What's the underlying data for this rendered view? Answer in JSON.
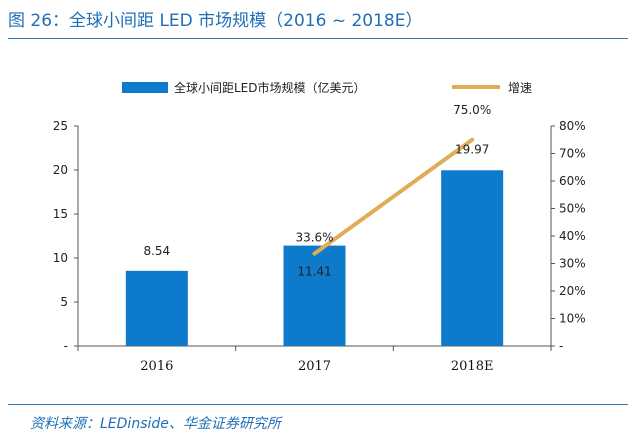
{
  "figure": {
    "title": "图 26：全球小间距 LED 市场规模（2016 ~ 2018E）",
    "source": "资料来源：LEDinside、华金证券研究所"
  },
  "colors": {
    "bar": "#0e7acb",
    "line": "#e0ac57",
    "axis": "#555555",
    "accent": "#1f6fb8"
  },
  "chart_data": {
    "type": "bar",
    "categories": [
      "2016",
      "2017",
      "2018E"
    ],
    "series": [
      {
        "name": "全球小间距LED市场规模（亿美元）",
        "type": "bar",
        "axis": "left",
        "values": [
          8.54,
          11.41,
          19.97
        ],
        "labels": [
          "8.54",
          "11.41",
          "19.97"
        ]
      },
      {
        "name": "增速",
        "type": "line",
        "axis": "right",
        "values": [
          null,
          33.6,
          75.0
        ],
        "labels": [
          "",
          "33.6%",
          "75.0%"
        ]
      }
    ],
    "y_left": {
      "min": 0,
      "max": 25,
      "ticks": [
        "-",
        "5",
        "10",
        "15",
        "20",
        "25"
      ],
      "tick_values": [
        0,
        5,
        10,
        15,
        20,
        25
      ]
    },
    "y_right": {
      "min": 0,
      "max": 80,
      "ticks": [
        "-",
        "10%",
        "20%",
        "30%",
        "40%",
        "50%",
        "60%",
        "70%",
        "80%"
      ],
      "tick_values": [
        0,
        10,
        20,
        30,
        40,
        50,
        60,
        70,
        80
      ]
    },
    "legend": "top",
    "grid": false
  }
}
